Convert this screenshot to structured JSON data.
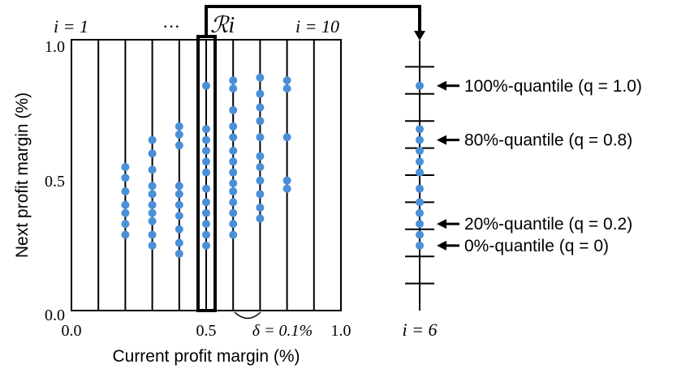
{
  "colors": {
    "point": "#4a8fd8",
    "line": "#000000"
  },
  "axes": {
    "xlabel": "Current profit margin (%)",
    "ylabel": "Next profit margin (%)",
    "xticks": [
      "0.0",
      "0.5",
      "1.0"
    ],
    "yticks": [
      "0.0",
      "0.5",
      "1.0"
    ]
  },
  "bins": {
    "first_label": "i = 1",
    "ellipsis": "···",
    "region_label": "ℛi",
    "last_label": "i = 10",
    "highlight_bin": 6,
    "width_label": "δ = 0.1%"
  },
  "quantile_panel": {
    "label": "i = 6",
    "quantiles": [
      {
        "text": "100%-quantile (q = 1.0)",
        "value": 0.83
      },
      {
        "text": "80%-quantile (q = 0.8)",
        "value": 0.63
      },
      {
        "text": "20%-quantile (q = 0.2)",
        "value": 0.32
      },
      {
        "text": "0%-quantile (q = 0)",
        "value": 0.24
      }
    ]
  },
  "chart_data": {
    "type": "scatter",
    "xlim": [
      0,
      1
    ],
    "ylim": [
      0,
      1
    ],
    "xlabel": "Current profit margin (%)",
    "ylabel": "Next profit margin (%)",
    "columns": [
      {
        "x": 0.2,
        "y": [
          0.53,
          0.49,
          0.44,
          0.39,
          0.36,
          0.32,
          0.28
        ]
      },
      {
        "x": 0.3,
        "y": [
          0.63,
          0.58,
          0.52,
          0.46,
          0.43,
          0.39,
          0.36,
          0.33,
          0.28,
          0.24
        ]
      },
      {
        "x": 0.4,
        "y": [
          0.68,
          0.65,
          0.61,
          0.46,
          0.43,
          0.39,
          0.35,
          0.3,
          0.25,
          0.21
        ]
      },
      {
        "x": 0.5,
        "y": [
          0.83,
          0.67,
          0.63,
          0.59,
          0.55,
          0.51,
          0.45,
          0.4,
          0.36,
          0.32,
          0.28,
          0.24
        ]
      },
      {
        "x": 0.6,
        "y": [
          0.85,
          0.82,
          0.74,
          0.68,
          0.64,
          0.59,
          0.55,
          0.51,
          0.47,
          0.44,
          0.4,
          0.36,
          0.32,
          0.28
        ]
      },
      {
        "x": 0.7,
        "y": [
          0.86,
          0.8,
          0.75,
          0.7,
          0.64,
          0.57,
          0.53,
          0.48,
          0.43,
          0.38,
          0.34
        ]
      },
      {
        "x": 0.8,
        "y": [
          0.85,
          0.82,
          0.64,
          0.48,
          0.45
        ]
      }
    ]
  }
}
